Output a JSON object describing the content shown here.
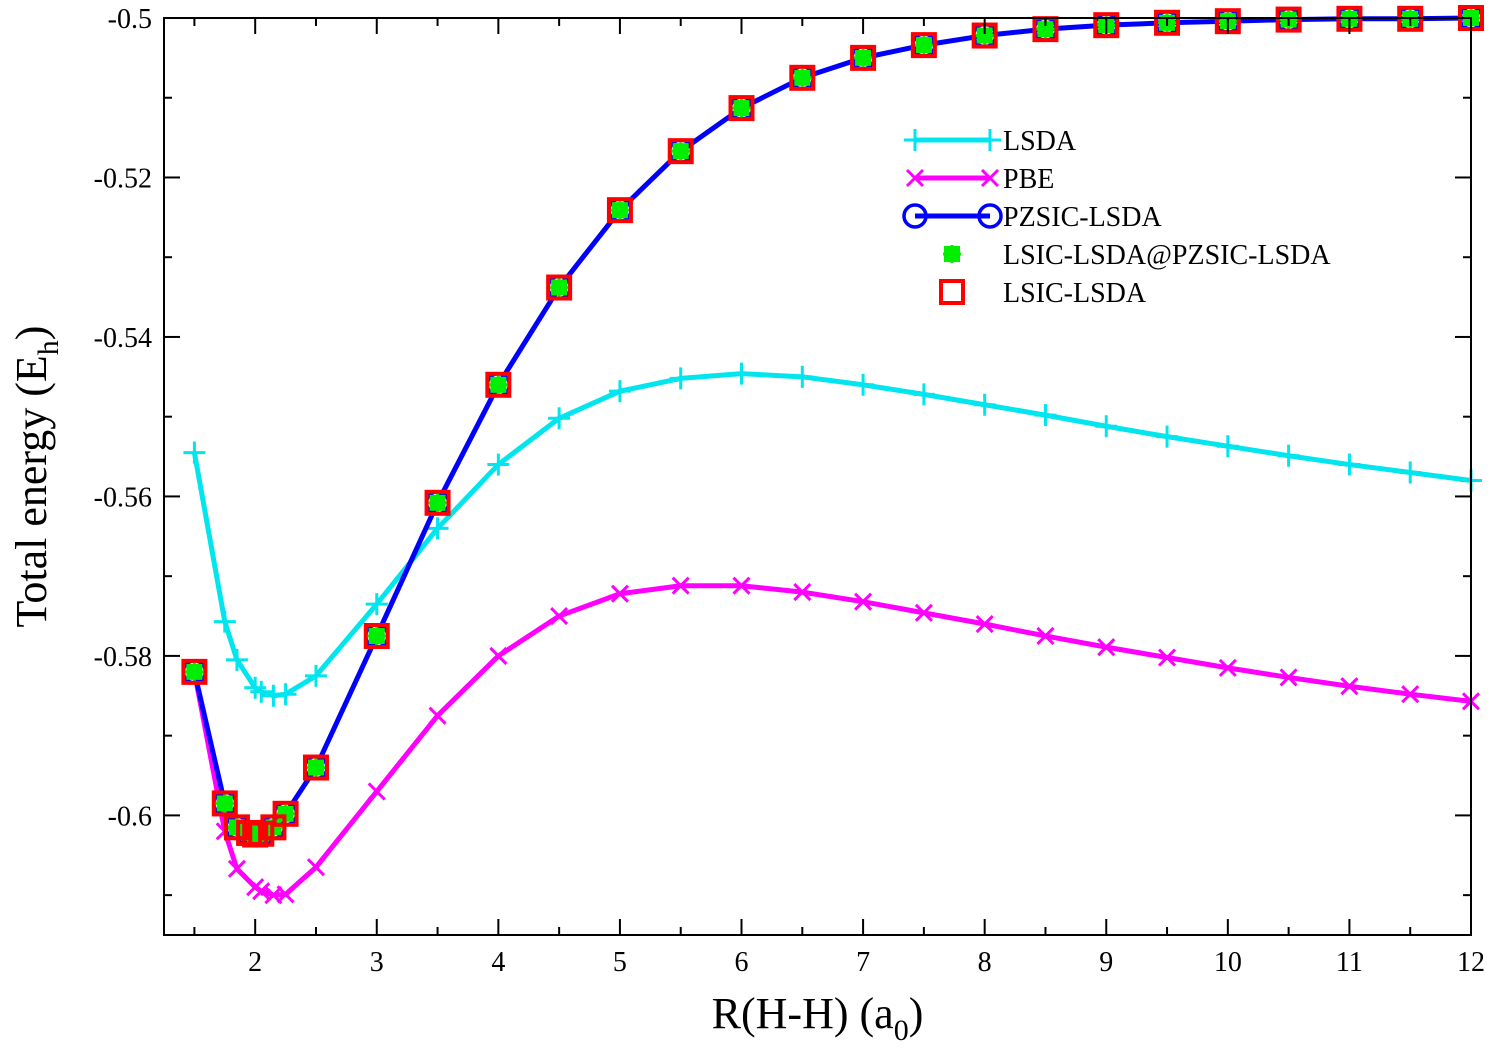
{
  "chart_data": {
    "type": "line",
    "title": "",
    "xlabel": "R(H-H) (a",
    "xlabel_sub": "0",
    "xlabel_close": ")",
    "ylabel": "Total energy (E",
    "ylabel_sub": "h",
    "ylabel_close": ")",
    "xlim": [
      1.25,
      12
    ],
    "ylim": [
      -0.615,
      -0.5
    ],
    "xticks": [
      2,
      3,
      4,
      5,
      6,
      7,
      8,
      9,
      10,
      11,
      12
    ],
    "xtick_labels": [
      "2",
      "3",
      "4",
      "5",
      "6",
      "7",
      "8",
      "9",
      "10",
      "11",
      "12"
    ],
    "yticks": [
      -0.6,
      -0.58,
      -0.56,
      -0.54,
      -0.52,
      -0.5
    ],
    "ytick_labels": [
      "-0.6",
      "-0.58",
      "-0.56",
      "-0.54",
      "-0.52",
      "-0.5"
    ],
    "grid": false,
    "legend_position": "upper-right",
    "series": [
      {
        "name": "LSDA",
        "color": "#00e5ee",
        "marker": "plus",
        "line": true,
        "x": [
          1.5,
          1.75,
          1.85,
          2.0,
          2.05,
          2.15,
          2.25,
          2.5,
          3.0,
          3.5,
          4.0,
          4.5,
          5.0,
          5.5,
          6.0,
          6.5,
          7.0,
          7.5,
          8.0,
          8.5,
          9.0,
          9.5,
          10.0,
          10.5,
          11.0,
          11.5,
          12.0
        ],
        "y": [
          -0.5545,
          -0.5757,
          -0.5805,
          -0.584,
          -0.5845,
          -0.585,
          -0.5848,
          -0.5825,
          -0.5735,
          -0.564,
          -0.556,
          -0.5502,
          -0.5468,
          -0.5452,
          -0.5446,
          -0.545,
          -0.546,
          -0.5472,
          -0.5485,
          -0.5498,
          -0.5512,
          -0.5525,
          -0.5537,
          -0.5549,
          -0.556,
          -0.557,
          -0.558
        ]
      },
      {
        "name": "PBE",
        "color": "#ff00ff",
        "marker": "cross",
        "line": true,
        "x": [
          1.5,
          1.75,
          1.85,
          2.0,
          2.05,
          2.15,
          2.25,
          2.5,
          3.0,
          3.5,
          4.0,
          4.5,
          5.0,
          5.5,
          6.0,
          6.5,
          7.0,
          7.5,
          8.0,
          8.5,
          9.0,
          9.5,
          10.0,
          10.5,
          11.0,
          11.5,
          12.0
        ],
        "y": [
          -0.582,
          -0.602,
          -0.6067,
          -0.609,
          -0.6095,
          -0.61,
          -0.6099,
          -0.6065,
          -0.597,
          -0.5875,
          -0.58,
          -0.575,
          -0.5722,
          -0.5712,
          -0.5712,
          -0.572,
          -0.5732,
          -0.5746,
          -0.576,
          -0.5775,
          -0.5789,
          -0.5802,
          -0.5815,
          -0.5827,
          -0.5838,
          -0.5848,
          -0.5857
        ]
      },
      {
        "name": "PZSIC-LSDA",
        "color": "#0000ff",
        "marker": "circle",
        "line": true,
        "x": [
          1.5,
          1.75,
          1.85,
          1.95,
          2.0,
          2.05,
          2.15,
          2.25,
          2.5,
          3.0,
          3.5,
          4.0,
          4.5,
          5.0,
          5.5,
          6.0,
          6.5,
          7.0,
          7.5,
          8.0,
          8.5,
          9.0,
          9.5,
          10.0,
          10.5,
          11.0,
          11.5,
          12.0
        ],
        "y": [
          -0.582,
          -0.5985,
          -0.6015,
          -0.6022,
          -0.6024,
          -0.6023,
          -0.6015,
          -0.5998,
          -0.594,
          -0.5775,
          -0.5608,
          -0.546,
          -0.5338,
          -0.5241,
          -0.5167,
          -0.5113,
          -0.5075,
          -0.505,
          -0.5034,
          -0.5022,
          -0.5014,
          -0.5009,
          -0.5006,
          -0.5004,
          -0.5002,
          -0.5001,
          -0.5001,
          -0.5
        ]
      },
      {
        "name": "LSIC-LSDA@PZSIC-LSDA",
        "color": "#00ee00",
        "marker": "star",
        "line": false,
        "x": [
          1.5,
          1.75,
          1.85,
          1.95,
          2.0,
          2.05,
          2.15,
          2.25,
          2.5,
          3.0,
          3.5,
          4.0,
          4.5,
          5.0,
          5.5,
          6.0,
          6.5,
          7.0,
          7.5,
          8.0,
          8.5,
          9.0,
          9.5,
          10.0,
          10.5,
          11.0,
          11.5,
          12.0
        ],
        "y": [
          -0.582,
          -0.5985,
          -0.6015,
          -0.6022,
          -0.6024,
          -0.6023,
          -0.6015,
          -0.5998,
          -0.594,
          -0.5775,
          -0.5608,
          -0.546,
          -0.5338,
          -0.5241,
          -0.5167,
          -0.5113,
          -0.5075,
          -0.505,
          -0.5034,
          -0.5022,
          -0.5014,
          -0.5009,
          -0.5006,
          -0.5004,
          -0.5002,
          -0.5001,
          -0.5001,
          -0.5
        ]
      },
      {
        "name": "LSIC-LSDA",
        "color": "#ff0000",
        "marker": "square",
        "line": false,
        "x": [
          1.5,
          1.75,
          1.85,
          1.95,
          2.0,
          2.05,
          2.15,
          2.25,
          2.5,
          3.0,
          3.5,
          4.0,
          4.5,
          5.0,
          5.5,
          6.0,
          6.5,
          7.0,
          7.5,
          8.0,
          8.5,
          9.0,
          9.5,
          10.0,
          10.5,
          11.0,
          11.5,
          12.0
        ],
        "y": [
          -0.582,
          -0.5985,
          -0.6015,
          -0.6022,
          -0.6024,
          -0.6023,
          -0.6015,
          -0.5998,
          -0.594,
          -0.5775,
          -0.5608,
          -0.546,
          -0.5338,
          -0.5241,
          -0.5167,
          -0.5113,
          -0.5075,
          -0.505,
          -0.5034,
          -0.5022,
          -0.5014,
          -0.5009,
          -0.5006,
          -0.5004,
          -0.5002,
          -0.5001,
          -0.5001,
          -0.5
        ]
      }
    ]
  }
}
